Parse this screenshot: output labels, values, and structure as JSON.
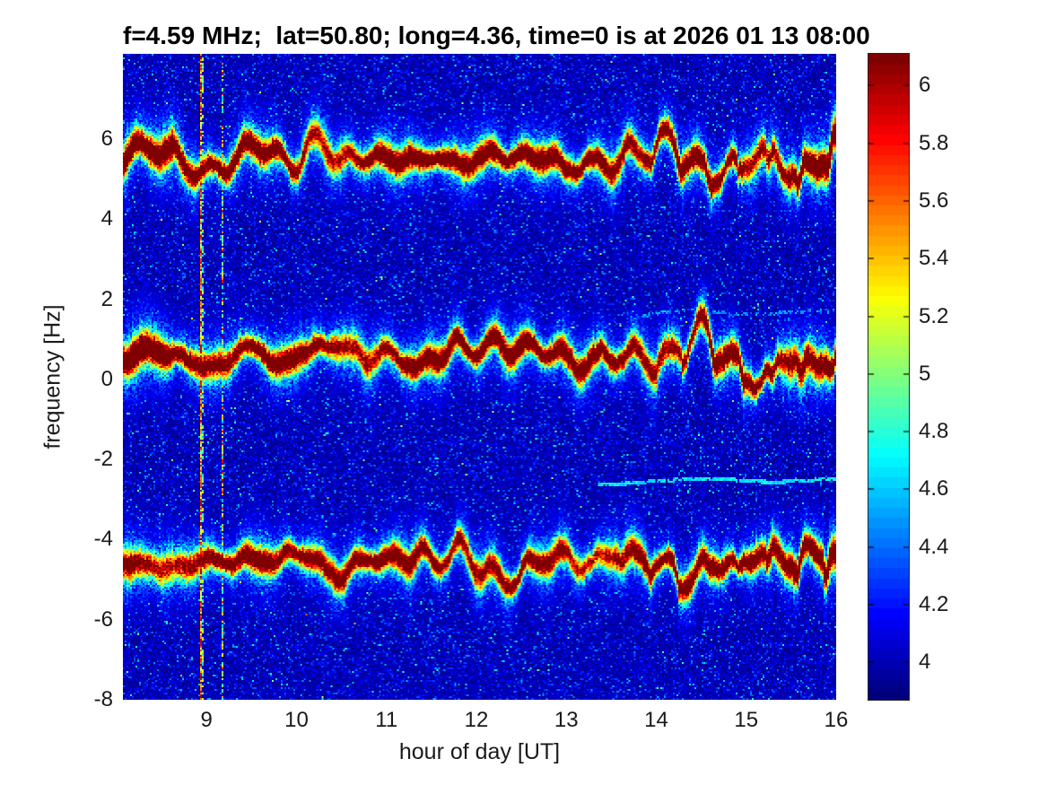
{
  "figure": {
    "background": "#ffffff"
  },
  "chart_data": {
    "type": "heatmap",
    "subtype": "doppler_spectrogram",
    "title": "f=4.59 MHz;  lat=50.80; long=4.36, time=0 is at 2026 01 13 08:00",
    "xlabel": "hour of day [UT]",
    "ylabel": "frequency [Hz]",
    "xlim": [
      8.07,
      16
    ],
    "ylim": [
      -8,
      8.13
    ],
    "xticks": [
      9,
      10,
      11,
      12,
      13,
      14,
      15,
      16
    ],
    "xtick_labels": [
      "9",
      "10",
      "11",
      "12",
      "13",
      "14",
      "15",
      "16"
    ],
    "yticks": [
      6,
      4,
      2,
      0,
      -2,
      -4,
      -6,
      -8
    ],
    "ytick_labels": [
      "6",
      "4",
      "2",
      "0",
      "-2",
      "-4",
      "-6",
      "-8"
    ],
    "grid": false,
    "legend": false,
    "colormap": "jet",
    "color_axis": {
      "min": 3.87,
      "max": 6.11,
      "levels": 64
    },
    "colorbar": {
      "position": "right",
      "ticks": [
        4,
        4.2,
        4.4,
        4.6,
        4.8,
        5,
        5.2,
        5.4,
        5.6,
        5.8,
        6
      ],
      "tick_labels": [
        "4",
        "4.2",
        "4.4",
        "4.6",
        "4.8",
        "5",
        "5.2",
        "5.4",
        "5.6",
        "5.8",
        "6"
      ]
    },
    "background_noise": {
      "floor_level": 3.92,
      "mean_level": 4.08,
      "speckle_level_max": 4.9
    },
    "doppler_traces": [
      {
        "name": "upper-sideband",
        "center_hz": 5.5,
        "wiggle_amp_hz": 0.33,
        "core_level": 6.05,
        "halo_level": 4.85
      },
      {
        "name": "main-carrier",
        "center_hz": 0.55,
        "wiggle_amp_hz": 0.35,
        "core_level": 6.05,
        "halo_level": 4.85
      },
      {
        "name": "lower-sideband",
        "center_hz": -4.55,
        "wiggle_amp_hz": 0.3,
        "core_level": 5.95,
        "halo_level": 4.75
      }
    ],
    "vertical_interference_lines": [
      {
        "hour": 8.92,
        "peak_level": 6.0,
        "style": "solid"
      },
      {
        "hour": 9.17,
        "peak_level": 5.6,
        "style": "speckled"
      }
    ],
    "faint_horizontal_traces": [
      {
        "center_hz": -2.52,
        "from_hour": 13.35,
        "to_hour": 16.0,
        "level": 4.65
      },
      {
        "center_hz": 1.67,
        "from_hour": 13.7,
        "to_hour": 16.0,
        "level": 4.45
      }
    ]
  }
}
